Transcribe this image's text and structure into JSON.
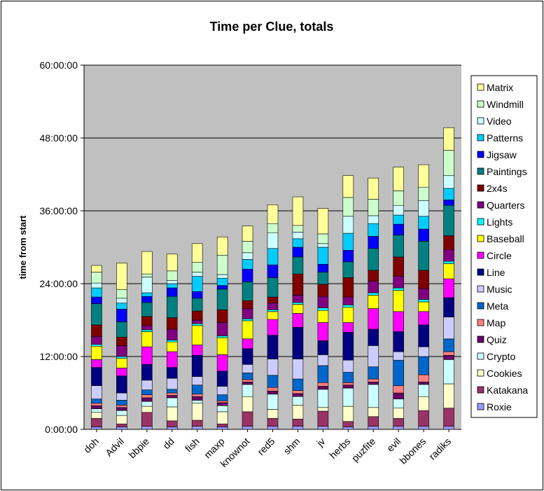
{
  "chart_data": {
    "type": "bar",
    "stacked": true,
    "title": "Time per Clue, totals",
    "ylabel": "time from start",
    "xlabel": "",
    "ylim": [
      0,
      60
    ],
    "y_unit": "hours",
    "y_ticks": [
      0,
      12,
      24,
      36,
      48,
      60
    ],
    "y_tick_labels": [
      "0:00:00",
      "12:00:00",
      "24:00:00",
      "36:00:00",
      "48:00:00",
      "60:00:00"
    ],
    "grid": true,
    "legend_position": "right",
    "categories": [
      "doh",
      "Advil",
      "bbpie",
      "dd",
      "fish",
      "maxp",
      "knownot",
      "red5",
      "shm",
      "jv",
      "herbs",
      "puzfite",
      "evil",
      "bbones",
      "radiks"
    ],
    "series": [
      {
        "name": "Roxie",
        "color": "#9999ff",
        "values": [
          0.4,
          0.4,
          0.5,
          0.4,
          0.5,
          0.4,
          0.5,
          0.5,
          0.5,
          0.5,
          0.4,
          0.5,
          0.5,
          0.5,
          0.5
        ]
      },
      {
        "name": "Katakana",
        "color": "#993366",
        "values": [
          1.4,
          0.5,
          2.3,
          1.0,
          1.0,
          0.5,
          2.4,
          1.3,
          1.2,
          2.5,
          0.9,
          1.6,
          1.3,
          2.6,
          3.0
        ]
      },
      {
        "name": "Cookies",
        "color": "#ffffcc",
        "values": [
          1.0,
          1.4,
          1.0,
          2.3,
          2.8,
          2.0,
          2.5,
          1.5,
          2.3,
          0.6,
          2.5,
          1.5,
          1.7,
          2.3,
          4.0
        ]
      },
      {
        "name": "Crypto",
        "color": "#ccffff",
        "values": [
          0.6,
          0.8,
          0.8,
          1.5,
          0.5,
          1.0,
          2.0,
          2.5,
          1.4,
          3.0,
          3.0,
          3.8,
          1.5,
          2.0,
          4.0
        ]
      },
      {
        "name": "Quiz",
        "color": "#660066",
        "values": [
          0.5,
          0.5,
          0.6,
          0.4,
          0.6,
          0.5,
          0.4,
          0.5,
          0.5,
          0.5,
          0.5,
          0.4,
          1.0,
          0.4,
          0.7
        ]
      },
      {
        "name": "Map",
        "color": "#ff8080",
        "values": [
          0.4,
          0.4,
          0.5,
          0.4,
          0.4,
          0.3,
          0.4,
          0.6,
          0.5,
          0.6,
          0.4,
          0.5,
          1.2,
          1.2,
          0.6
        ]
      },
      {
        "name": "Meta",
        "color": "#0066cc",
        "values": [
          0.7,
          0.8,
          0.8,
          0.6,
          1.5,
          1.0,
          1.1,
          2.0,
          1.9,
          2.8,
          1.7,
          2.0,
          4.2,
          3.0,
          2.1
        ]
      },
      {
        "name": "Music",
        "color": "#ccccff",
        "values": [
          2.2,
          1.2,
          1.6,
          1.8,
          1.4,
          1.4,
          1.4,
          2.7,
          3.3,
          1.8,
          2.0,
          3.5,
          1.4,
          1.6,
          3.6
        ]
      },
      {
        "name": "Line",
        "color": "#000080",
        "values": [
          3.0,
          2.8,
          2.6,
          1.8,
          3.5,
          2.5,
          2.6,
          3.9,
          5.2,
          2.3,
          4.6,
          2.7,
          3.3,
          3.6,
          3.2
        ]
      },
      {
        "name": "Circle",
        "color": "#ff00ff",
        "values": [
          1.3,
          1.3,
          2.9,
          2.6,
          1.7,
          2.7,
          1.6,
          2.6,
          2.3,
          3.0,
          1.6,
          3.4,
          3.3,
          2.2,
          3.1
        ]
      },
      {
        "name": "Baseball",
        "color": "#ffff00",
        "values": [
          2.2,
          1.6,
          2.5,
          1.6,
          3.2,
          2.8,
          3.0,
          1.3,
          1.5,
          2.0,
          2.5,
          2.2,
          3.5,
          1.6,
          2.5
        ]
      },
      {
        "name": "Lights",
        "color": "#00ffff",
        "values": [
          0.3,
          0.3,
          0.3,
          0.3,
          0.3,
          0.3,
          0.3,
          0.3,
          0.3,
          0.4,
          0.4,
          0.4,
          0.4,
          0.4,
          0.4
        ]
      },
      {
        "name": "Quarters",
        "color": "#800080",
        "values": [
          1.3,
          1.8,
          0.7,
          1.8,
          0.6,
          2.2,
          1.7,
          1.1,
          1.2,
          1.9,
          1.3,
          1.9,
          1.9,
          1.8,
          1.9
        ]
      },
      {
        "name": "2x4s",
        "color": "#800000",
        "values": [
          1.9,
          1.4,
          1.5,
          1.9,
          1.5,
          2.1,
          1.3,
          1.0,
          3.5,
          2.0,
          3.2,
          1.8,
          3.2,
          3.0,
          2.3
        ]
      },
      {
        "name": "Paintings",
        "color": "#008080",
        "values": [
          3.5,
          2.5,
          2.3,
          3.5,
          2.1,
          3.4,
          3.1,
          3.2,
          2.8,
          2.0,
          2.6,
          3.6,
          3.6,
          4.8,
          5.0
        ]
      },
      {
        "name": "Jigsaw",
        "color": "#0000ff",
        "values": [
          1.1,
          2.1,
          1.0,
          1.4,
          1.1,
          0.6,
          2.1,
          2.1,
          1.6,
          1.3,
          1.9,
          2.0,
          1.8,
          2.0,
          0.9
        ]
      },
      {
        "name": "Patterns",
        "color": "#00ccff",
        "values": [
          1.5,
          1.0,
          0.6,
          0.7,
          2.5,
          1.2,
          1.6,
          2.7,
          1.4,
          2.8,
          2.8,
          2.1,
          1.5,
          2.1,
          1.9
        ]
      },
      {
        "name": "Video",
        "color": "#ccffff",
        "values": [
          0.8,
          0.8,
          2.6,
          0.5,
          0.7,
          0.6,
          1.1,
          2.6,
          1.1,
          0.6,
          2.8,
          1.3,
          1.6,
          2.6,
          2.1
        ]
      },
      {
        "name": "Windmill",
        "color": "#ccffcc",
        "values": [
          1.8,
          1.4,
          0.5,
          1.6,
          1.6,
          3.2,
          1.9,
          1.5,
          1.1,
          1.6,
          3.1,
          2.7,
          2.4,
          2.2,
          4.2
        ]
      },
      {
        "name": "Matrix",
        "color": "#ffff99",
        "values": [
          1.1,
          4.4,
          3.7,
          2.8,
          3.1,
          3.0,
          2.5,
          3.1,
          4.7,
          4.2,
          3.6,
          3.5,
          3.9,
          3.7,
          3.7
        ]
      }
    ]
  }
}
